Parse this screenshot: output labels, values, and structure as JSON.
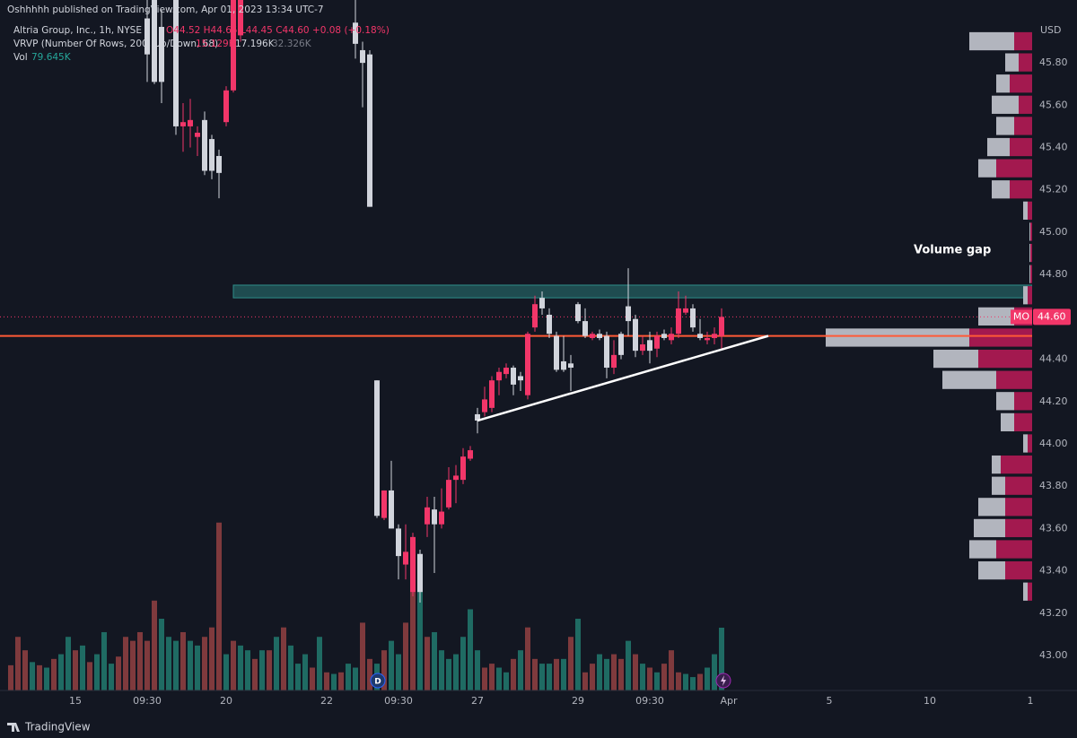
{
  "header": {
    "published": "Oshhhhh published on TradingView.com, Apr 01, 2023 13:34 UTC-7",
    "symbol": "Altria Group, Inc., 1h, NYSE",
    "ohlc": "O44.52 H44.65 L44.45 C44.60 +0.08 (+0.18%)",
    "vrvp": "VRVP (Number Of Rows, 200, Up/Down, 68)",
    "vrvp_up": "15.129K",
    "vrvp_down": "17.196K",
    "vrvp_total": "32.326K",
    "vol": "Vol",
    "vol_value": "79.645K",
    "currency": "USD",
    "brand": "TradingView"
  },
  "chart_data": {
    "type": "candlestick",
    "xlim": [
      -0.25,
      142.25
    ],
    "ylim": [
      42.835,
      46.097
    ],
    "grid": false,
    "up_color": "#f23669",
    "down_color": "#d1d4dc",
    "xticks": [
      {
        "value": 9,
        "label": "15"
      },
      {
        "value": 19,
        "label": "09:30"
      },
      {
        "value": 30,
        "label": "20"
      },
      {
        "value": 44,
        "label": "22"
      },
      {
        "value": 54,
        "label": "09:30"
      },
      {
        "value": 65,
        "label": "27"
      },
      {
        "value": 79,
        "label": "29"
      },
      {
        "value": 89,
        "label": "09:30"
      },
      {
        "value": 100,
        "label": "Apr"
      },
      {
        "value": 114,
        "label": "5"
      },
      {
        "value": 128,
        "label": "10"
      },
      {
        "value": 142,
        "label": "1"
      }
    ],
    "yticks": [
      {
        "value": 43.0,
        "label": "43.00"
      },
      {
        "value": 43.2,
        "label": "43.20"
      },
      {
        "value": 43.4,
        "label": "43.40"
      },
      {
        "value": 43.6,
        "label": "43.60"
      },
      {
        "value": 43.8,
        "label": "43.80"
      },
      {
        "value": 44.0,
        "label": "44.00"
      },
      {
        "value": 44.2,
        "label": "44.20"
      },
      {
        "value": 44.4,
        "label": "44.40"
      },
      {
        "value": 44.6,
        "label": "44.60"
      },
      {
        "value": 44.8,
        "label": "44.80"
      },
      {
        "value": 45.0,
        "label": "45.00"
      },
      {
        "value": 45.2,
        "label": "45.20"
      },
      {
        "value": 45.4,
        "label": "45.40"
      },
      {
        "value": 45.6,
        "label": "45.60"
      },
      {
        "value": 45.8,
        "label": "45.80"
      }
    ],
    "candles": {
      "x": [
        19,
        20,
        21,
        23,
        24,
        25,
        26,
        27,
        28,
        29,
        30,
        31,
        32,
        48,
        49,
        50,
        51,
        52,
        53,
        54,
        55,
        56,
        57,
        58,
        59,
        60,
        61,
        62,
        63,
        64,
        65,
        66,
        67,
        68,
        69,
        70,
        71,
        72,
        73,
        74,
        75,
        76,
        77,
        78,
        79,
        80,
        81,
        82,
        83,
        84,
        85,
        86,
        87,
        88,
        89,
        90,
        91,
        92,
        93,
        94,
        95,
        96,
        97,
        98,
        99
      ],
      "open": [
        46.01,
        46.12,
        45.97,
        46.1,
        45.5,
        45.5,
        45.45,
        45.53,
        45.44,
        45.36,
        45.52,
        45.67,
        45.93,
        45.99,
        45.86,
        45.84,
        44.3,
        43.65,
        43.78,
        43.6,
        43.43,
        43.3,
        43.48,
        43.62,
        43.69,
        43.62,
        43.7,
        43.83,
        43.83,
        43.93,
        44.14,
        44.15,
        44.17,
        44.3,
        44.33,
        44.36,
        44.32,
        44.23,
        44.55,
        44.69,
        44.61,
        44.51,
        44.39,
        44.38,
        44.66,
        44.58,
        44.5,
        44.52,
        44.51,
        44.36,
        44.52,
        44.65,
        44.59,
        44.44,
        44.49,
        44.45,
        44.52,
        44.49,
        44.52,
        44.62,
        44.64,
        44.52,
        44.49,
        44.5,
        44.51
      ],
      "high": [
        46.15,
        46.15,
        46.05,
        46.15,
        45.61,
        45.63,
        45.5,
        45.57,
        45.46,
        45.39,
        45.69,
        46.15,
        46.15,
        46.1,
        45.9,
        45.86,
        44.3,
        43.78,
        43.92,
        43.62,
        43.62,
        43.58,
        43.5,
        43.75,
        43.75,
        43.79,
        43.89,
        43.9,
        43.98,
        43.99,
        44.17,
        44.27,
        44.32,
        44.36,
        44.38,
        44.37,
        44.34,
        44.53,
        44.7,
        44.72,
        44.64,
        44.53,
        44.51,
        44.42,
        44.67,
        44.64,
        44.53,
        44.54,
        44.53,
        44.49,
        44.53,
        44.83,
        44.61,
        44.51,
        44.53,
        44.53,
        44.54,
        44.55,
        44.72,
        44.7,
        44.66,
        44.59,
        44.53,
        44.55,
        44.64
      ],
      "low": [
        45.71,
        45.7,
        45.61,
        45.46,
        45.38,
        45.4,
        45.36,
        45.27,
        45.25,
        45.16,
        45.5,
        45.66,
        45.9,
        45.82,
        45.59,
        45.12,
        43.65,
        43.64,
        43.6,
        43.36,
        43.36,
        43.28,
        43.25,
        43.56,
        43.39,
        43.6,
        43.69,
        43.72,
        43.81,
        43.92,
        44.05,
        44.13,
        44.15,
        44.23,
        44.31,
        44.23,
        44.25,
        44.21,
        44.53,
        44.61,
        44.5,
        44.34,
        44.34,
        44.25,
        44.57,
        44.5,
        44.49,
        44.49,
        44.31,
        44.33,
        44.4,
        44.51,
        44.41,
        44.42,
        44.38,
        44.41,
        44.49,
        44.47,
        44.5,
        44.61,
        44.53,
        44.49,
        44.47,
        44.47,
        44.45
      ],
      "close": [
        45.84,
        45.71,
        45.71,
        45.5,
        45.52,
        45.53,
        45.47,
        45.29,
        45.29,
        45.28,
        45.67,
        46.12,
        46.12,
        45.89,
        45.8,
        45.12,
        43.66,
        43.78,
        43.6,
        43.47,
        43.49,
        43.56,
        43.3,
        43.7,
        43.62,
        43.68,
        43.83,
        43.85,
        43.94,
        43.97,
        44.11,
        44.21,
        44.3,
        44.34,
        44.36,
        44.28,
        44.3,
        44.52,
        44.66,
        44.64,
        44.52,
        44.35,
        44.35,
        44.36,
        44.58,
        44.51,
        44.52,
        44.5,
        44.36,
        44.42,
        44.42,
        44.58,
        44.44,
        44.47,
        44.44,
        44.51,
        44.5,
        44.52,
        44.64,
        44.64,
        44.55,
        44.5,
        44.5,
        44.52,
        44.6
      ]
    },
    "volume": {
      "name": "Vol",
      "ylim": [
        0,
        876
      ],
      "up_color": "#7f3a3d",
      "down_color": "#1f6b63",
      "values": [
        32,
        68,
        51,
        36,
        32,
        29,
        40,
        46,
        68,
        51,
        57,
        36,
        46,
        74,
        34,
        43,
        68,
        63,
        74,
        63,
        114,
        91,
        68,
        63,
        74,
        63,
        57,
        68,
        80,
        213,
        46,
        63,
        57,
        51,
        40,
        51,
        51,
        68,
        80,
        57,
        34,
        46,
        29,
        68,
        23,
        21,
        23,
        34,
        29,
        86,
        40,
        34,
        51,
        63,
        46,
        86,
        125,
        125,
        68,
        74,
        51,
        40,
        46,
        68,
        103,
        51,
        29,
        34,
        29,
        23,
        40,
        51,
        80,
        40,
        34,
        34,
        40,
        40,
        68,
        91,
        23,
        34,
        46,
        40,
        46,
        40,
        63,
        46,
        34,
        29,
        23,
        34,
        51,
        23,
        21,
        17,
        21,
        29,
        46,
        79.645
      ],
      "up": [
        true,
        true,
        true,
        false,
        true,
        false,
        true,
        false,
        false,
        true,
        false,
        true,
        false,
        false,
        false,
        true,
        true,
        true,
        true,
        true,
        true,
        false,
        false,
        false,
        true,
        false,
        false,
        true,
        true,
        true,
        false,
        true,
        false,
        false,
        true,
        false,
        true,
        false,
        true,
        false,
        false,
        false,
        true,
        false,
        true,
        false,
        true,
        false,
        false,
        true,
        true,
        false,
        true,
        false,
        false,
        true,
        true,
        false,
        true,
        false,
        false,
        false,
        false,
        false,
        false,
        false,
        true,
        true,
        false,
        false,
        true,
        false,
        true,
        true,
        false,
        false,
        true,
        false,
        true,
        false,
        true,
        true,
        false,
        false,
        true,
        true,
        false,
        true,
        false,
        true,
        false,
        true,
        true,
        true,
        false,
        false,
        true,
        false,
        false,
        false
      ]
    },
    "volume_profile": {
      "xlim": [
        0,
        1140
      ],
      "row_height": 0.09,
      "up_color": "#a3194f",
      "down_color": "#b2b5be",
      "prices": [
        43.3,
        43.4,
        43.5,
        43.6,
        43.7,
        43.8,
        43.9,
        44.0,
        44.1,
        44.2,
        44.3,
        44.4,
        44.5,
        44.6,
        44.7,
        44.8,
        44.9,
        45.0,
        45.1,
        45.2,
        45.3,
        45.4,
        45.5,
        45.6,
        45.7,
        45.8,
        45.9
      ],
      "up": [
        5,
        30,
        40,
        30,
        30,
        30,
        35,
        5,
        20,
        20,
        40,
        60,
        70,
        20,
        5,
        2,
        2,
        2,
        5,
        25,
        40,
        25,
        20,
        15,
        25,
        15,
        20
      ],
      "down": [
        5,
        30,
        30,
        35,
        30,
        15,
        10,
        5,
        15,
        20,
        60,
        50,
        160,
        40,
        5,
        1,
        1,
        1,
        5,
        20,
        20,
        25,
        20,
        30,
        15,
        15,
        50
      ]
    },
    "zone": {
      "x": [
        31,
        142.25
      ],
      "y": [
        44.69,
        44.75
      ],
      "color": "#2f8e8a"
    },
    "support_line": {
      "price": 44.51,
      "color": "#ff5a36"
    },
    "trendline": {
      "x": [
        65,
        105.5
      ],
      "y": [
        44.11,
        44.51
      ],
      "color": "#ffffff"
    },
    "last_price": {
      "value": 44.6,
      "label": "44.60",
      "symbol": "MO",
      "color": "#f23669"
    },
    "annotation": "Volume gap"
  }
}
